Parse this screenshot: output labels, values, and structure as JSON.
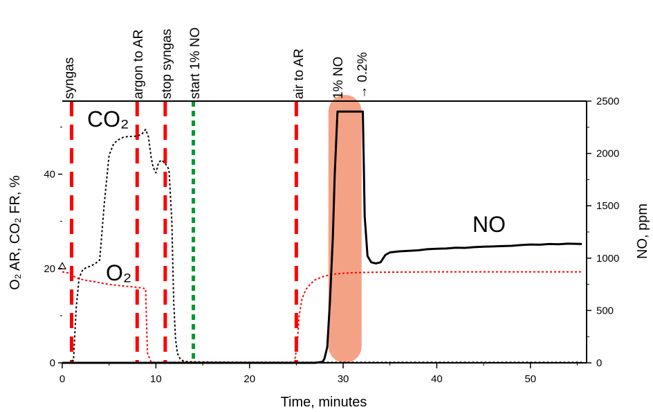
{
  "chart_data": {
    "type": "line",
    "xlabel": "Time, minutes",
    "ylabel_left": "O₂ AR, CO₂ FR, %",
    "ylabel_right": "NO, ppm",
    "xlim": [
      0,
      56
    ],
    "ylim_left": [
      0,
      55.5
    ],
    "ylim_right": [
      0,
      2500
    ],
    "x_ticks": [
      "0",
      "10",
      "20",
      "30",
      "40",
      "50"
    ],
    "y_left_ticks": [
      "0",
      "20",
      "40"
    ],
    "y_right_ticks": [
      "0",
      "500",
      "1000",
      "1500",
      "2000",
      "2500"
    ],
    "grid": false,
    "series_labels": {
      "co2": "CO₂",
      "o2": "O₂",
      "no": "NO"
    },
    "series": [
      {
        "key": "co2",
        "axis": "left",
        "style": "dotted",
        "color": "#000000",
        "x": [
          1.0,
          1.2,
          1.5,
          1.8,
          2.2,
          2.6,
          3.0,
          3.5,
          4.0,
          4.5,
          5.0,
          5.5,
          6.0,
          6.5,
          7.0,
          7.5,
          8.0,
          8.5,
          8.9,
          9.2,
          9.5,
          9.7,
          10.0,
          10.3,
          10.6,
          11.0,
          11.4,
          11.7,
          11.9,
          12.1,
          12.3,
          12.6,
          13.0,
          14.0,
          20.0,
          30.0,
          40.0,
          50.0,
          55.5
        ],
        "y": [
          0.5,
          0.5,
          12.0,
          18.0,
          19.8,
          20.2,
          20.5,
          21.0,
          21.8,
          34.0,
          44.0,
          46.5,
          47.3,
          47.8,
          48.0,
          48.0,
          48.1,
          48.5,
          49.5,
          48.0,
          43.5,
          41.5,
          40.3,
          42.5,
          43.0,
          42.3,
          41.0,
          30.0,
          13.0,
          5.0,
          2.0,
          0.8,
          0.3,
          0.2,
          0.1,
          0.1,
          0.1,
          0.1,
          0.1
        ]
      },
      {
        "key": "o2",
        "axis": "left",
        "style": "dotted",
        "color": "#ff0000",
        "x": [
          0.0,
          0.8,
          1.0,
          1.5,
          2.5,
          3.5,
          4.5,
          5.5,
          6.5,
          7.5,
          8.5,
          8.9,
          9.1,
          9.5,
          24.8,
          25.1,
          25.3,
          25.6,
          26.0,
          26.5,
          27.0,
          28.0,
          29.0,
          30.0,
          31.0,
          33.0,
          40.0,
          50.0,
          55.5
        ],
        "y": [
          19.3,
          19.0,
          18.7,
          18.0,
          17.5,
          17.2,
          16.8,
          16.5,
          16.3,
          16.1,
          15.9,
          15.7,
          2.0,
          0.1,
          0.1,
          4.0,
          10.0,
          13.5,
          15.5,
          16.7,
          17.6,
          18.4,
          18.8,
          19.0,
          19.1,
          19.2,
          19.3,
          19.3,
          19.3
        ]
      },
      {
        "key": "no",
        "axis": "right",
        "style": "solid",
        "color": "#000000",
        "x": [
          0.0,
          27.0,
          27.8,
          28.0,
          28.3,
          28.6,
          28.9,
          29.1,
          29.4,
          32.1,
          32.2,
          32.3,
          32.6,
          33.0,
          33.5,
          34.0,
          34.5,
          35.0,
          36.0,
          37.0,
          38.0,
          39.0,
          40.0,
          41.0,
          42.0,
          43.0,
          44.0,
          45.0,
          46.0,
          47.0,
          48.0,
          49.0,
          50.0,
          51.0,
          52.0,
          53.0,
          54.0,
          55.5
        ],
        "y": [
          0,
          0,
          10,
          40,
          150,
          600,
          1200,
          1800,
          2400,
          2400,
          1900,
          1400,
          1020,
          960,
          950,
          960,
          1030,
          1055,
          1065,
          1070,
          1075,
          1085,
          1090,
          1092,
          1100,
          1098,
          1105,
          1110,
          1112,
          1115,
          1118,
          1125,
          1130,
          1128,
          1135,
          1132,
          1138,
          1135
        ]
      }
    ],
    "events": [
      {
        "x": 1.0,
        "label": "syngas",
        "color": "#ff0000",
        "style": "dash"
      },
      {
        "x": 8.0,
        "label": "argon to AR",
        "color": "#ff0000",
        "style": "dash"
      },
      {
        "x": 11.0,
        "label": "stop syngas",
        "color": "#ff0000",
        "style": "dash"
      },
      {
        "x": 14.0,
        "label": "start 1% NO",
        "color": "#009933",
        "style": "dot"
      },
      {
        "x": 25.0,
        "label": "air to AR",
        "color": "#ff0000",
        "style": "dash"
      }
    ],
    "highlight": {
      "x_center": 30.2,
      "range_right": [
        0,
        2400
      ],
      "color": "#f4a286",
      "label_line1": "1% NO",
      "label_line2": "→ 0.2%"
    },
    "markers": [
      {
        "x": 0.0,
        "y": 20.5,
        "axis": "left",
        "shape": "triangle-open"
      }
    ]
  }
}
